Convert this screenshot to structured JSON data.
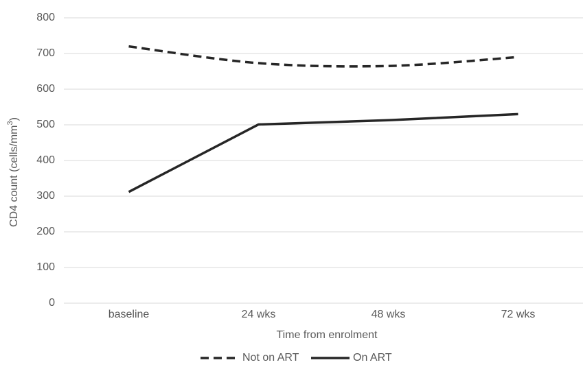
{
  "chart_data": {
    "type": "line",
    "title": "",
    "xlabel": "Time from enrolment",
    "ylabel": "CD4 count (cells/mm³)",
    "categories": [
      "baseline",
      "24 wks",
      "48 wks",
      "72 wks"
    ],
    "ylim": [
      0,
      800
    ],
    "yticks": [
      0,
      100,
      200,
      300,
      400,
      500,
      600,
      700,
      800
    ],
    "grid": true,
    "legend_position": "bottom",
    "series": [
      {
        "name": "Not on ART",
        "values": [
          720,
          673,
          665,
          690
        ],
        "line_style": "dashed",
        "color": "#262626"
      },
      {
        "name": "On ART",
        "values": [
          312,
          501,
          513,
          530
        ],
        "line_style": "solid",
        "color": "#262626"
      }
    ]
  }
}
